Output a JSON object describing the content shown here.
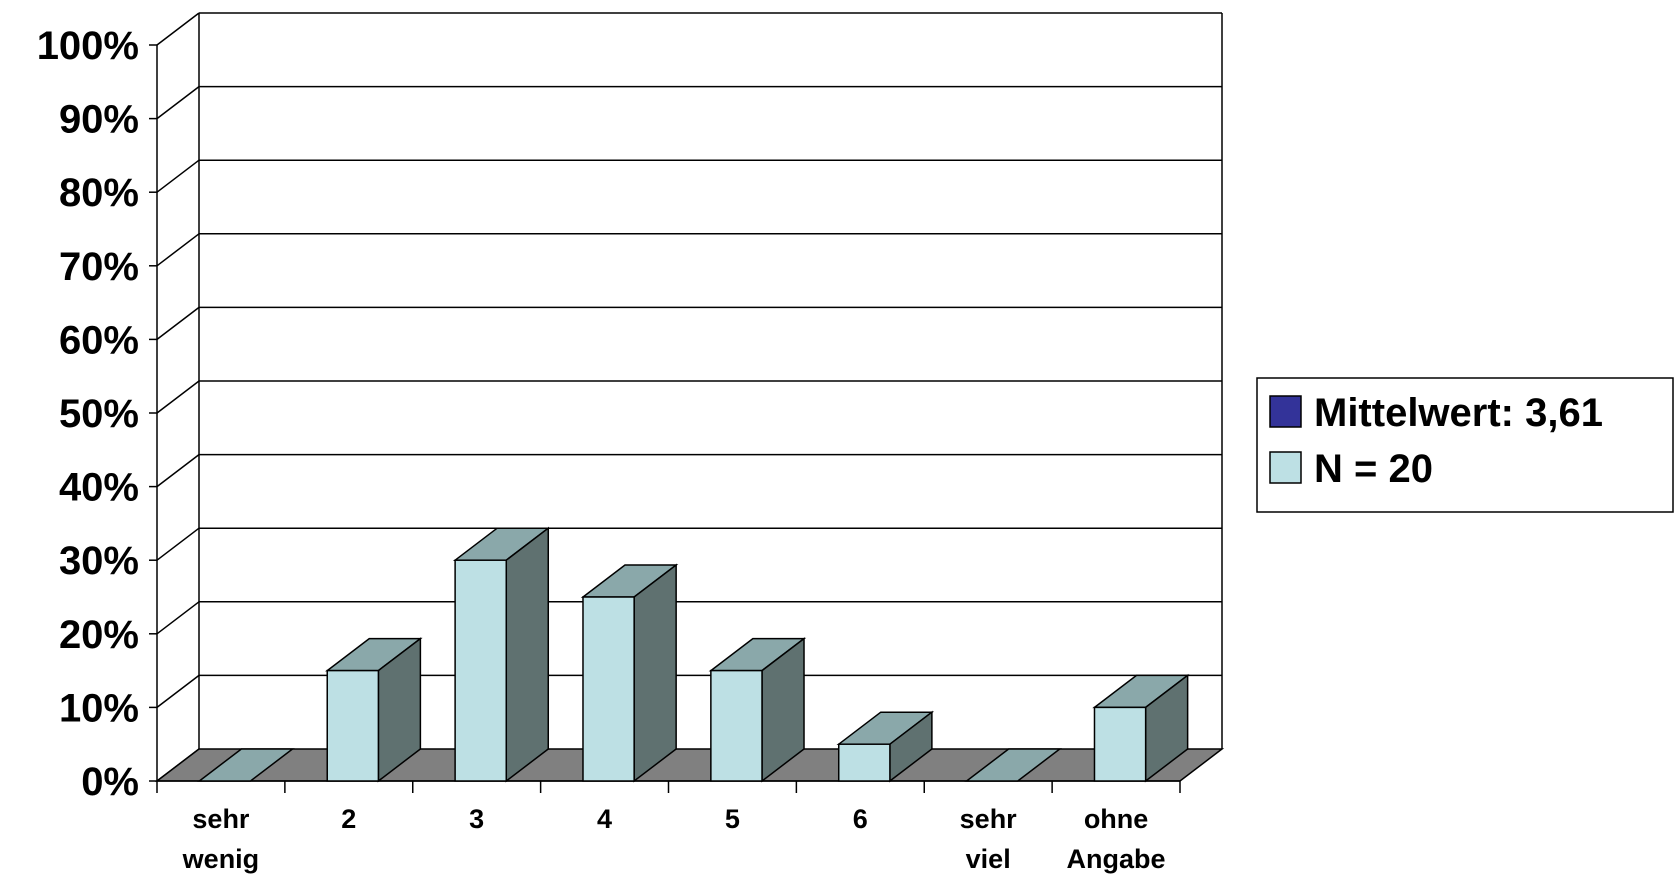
{
  "chart_data": {
    "type": "bar",
    "categories": [
      [
        "sehr",
        "wenig"
      ],
      [
        "2"
      ],
      [
        "3"
      ],
      [
        "4"
      ],
      [
        "5"
      ],
      [
        "6"
      ],
      [
        "sehr",
        "viel"
      ],
      [
        "ohne",
        "Angabe"
      ]
    ],
    "series": [
      {
        "name": "N = 20",
        "values": [
          0,
          15,
          30,
          25,
          15,
          5,
          0,
          10
        ],
        "color": "#bde0e4"
      }
    ],
    "yticks": [
      "0%",
      "10%",
      "20%",
      "30%",
      "40%",
      "50%",
      "60%",
      "70%",
      "80%",
      "90%",
      "100%"
    ],
    "ylim": [
      0,
      100
    ],
    "grid": true,
    "legend": {
      "placement": "right",
      "items": [
        {
          "label": "Mittelwert: 3,61",
          "color": "#333399"
        },
        {
          "label": "N = 20",
          "color": "#bde0e4"
        }
      ]
    },
    "colors": {
      "bar_front": "#bde0e4",
      "bar_top": "#8aa8aa",
      "bar_side": "#5f7170",
      "floor": "#808080"
    }
  }
}
